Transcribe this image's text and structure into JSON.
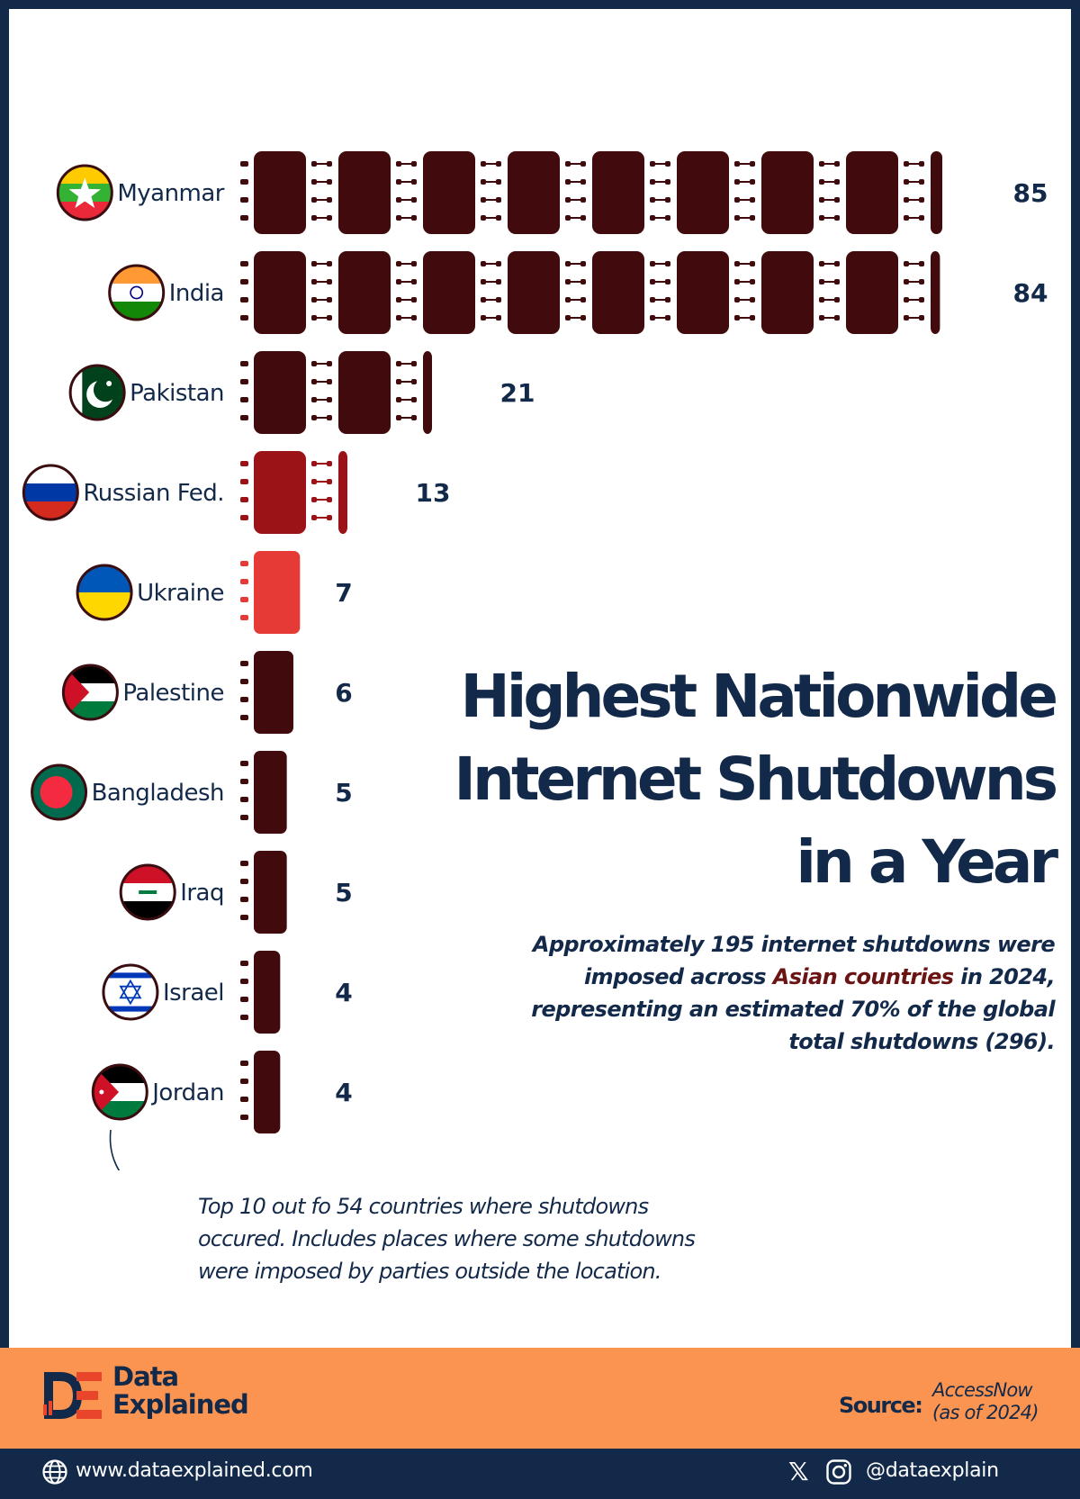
{
  "title": [
    "Highest Nationwide",
    "Internet Shutdowns",
    "in a Year"
  ],
  "subtitle": {
    "line1": "Approximately 195 internet shutdowns were",
    "line2_pre": "imposed across ",
    "line2_highlight": "Asian countries",
    "line2_post": " in 2024,",
    "line3": "representing an estimated 70% of the global",
    "line4": "total shutdowns (296)."
  },
  "note": {
    "line1": "Top 10 out fo 54 countries where shutdowns",
    "line2": "occured. Includes places where some shutdowns",
    "line3": "were imposed by parties outside the location."
  },
  "brand": {
    "line1": "Data",
    "line2": "Explained"
  },
  "source": {
    "label": "Source:",
    "value_line1": "AccessNow",
    "value_line2": "(as of 2024)"
  },
  "footer": {
    "website": "www.dataexplained.com",
    "handle": "@dataexplain"
  },
  "colors": {
    "navy": "#13294a",
    "orange": "#fa9450",
    "dark_maroon": "#410a0c",
    "red": "#9b1217",
    "light_red": "#e53a35"
  },
  "chart_data": {
    "type": "bar",
    "orientation": "horizontal",
    "unit_glyph": "chip-icon",
    "categories": [
      "Myanmar",
      "India",
      "Pakistan",
      "Russian Fed.",
      "Ukraine",
      "Palestine",
      "Bangladesh",
      "Iraq",
      "Israel",
      "Jordan"
    ],
    "values": [
      85,
      84,
      21,
      13,
      7,
      6,
      5,
      5,
      4,
      4
    ],
    "bar_colors": [
      "#410a0c",
      "#410a0c",
      "#410a0c",
      "#9b1217",
      "#e53a35",
      "#410a0c",
      "#410a0c",
      "#410a0c",
      "#410a0c",
      "#410a0c"
    ],
    "flag_icons": [
      "myanmar-flag-icon",
      "india-flag-icon",
      "pakistan-flag-icon",
      "russia-flag-icon",
      "ukraine-flag-icon",
      "palestine-flag-icon",
      "bangladesh-flag-icon",
      "iraq-flag-icon",
      "israel-flag-icon",
      "jordan-flag-icon"
    ],
    "xlim": [
      0,
      85
    ]
  }
}
